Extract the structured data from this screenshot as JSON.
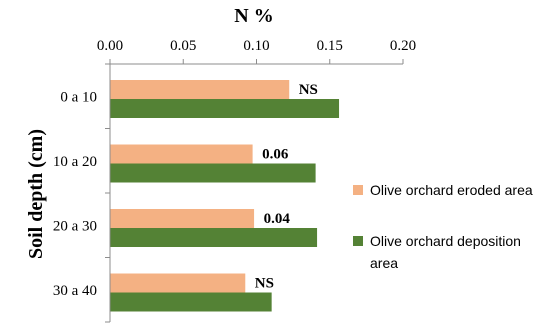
{
  "chart_data": {
    "type": "bar",
    "orientation": "horizontal",
    "title": "N %",
    "xlabel": "N %",
    "ylabel": "Soil depth (cm)",
    "categories": [
      "0 a 10",
      "10 a 20",
      "20 a 30",
      "30 a 40"
    ],
    "series": [
      {
        "name": "Olive orchard eroded area",
        "color": "#F4B183",
        "values": [
          0.122,
          0.097,
          0.098,
          0.092
        ]
      },
      {
        "name": "Olive orchard deposition area",
        "color": "#548235",
        "values": [
          0.156,
          0.14,
          0.141,
          0.11
        ]
      }
    ],
    "annotations": [
      "NS",
      "0.06",
      "0.04",
      "NS"
    ],
    "xlim": [
      0,
      0.2
    ],
    "xticks": [
      "0.00",
      "0.05",
      "0.10",
      "0.15",
      "0.20"
    ],
    "x_axis_position": "top",
    "grid": false,
    "legend_position": "right"
  }
}
